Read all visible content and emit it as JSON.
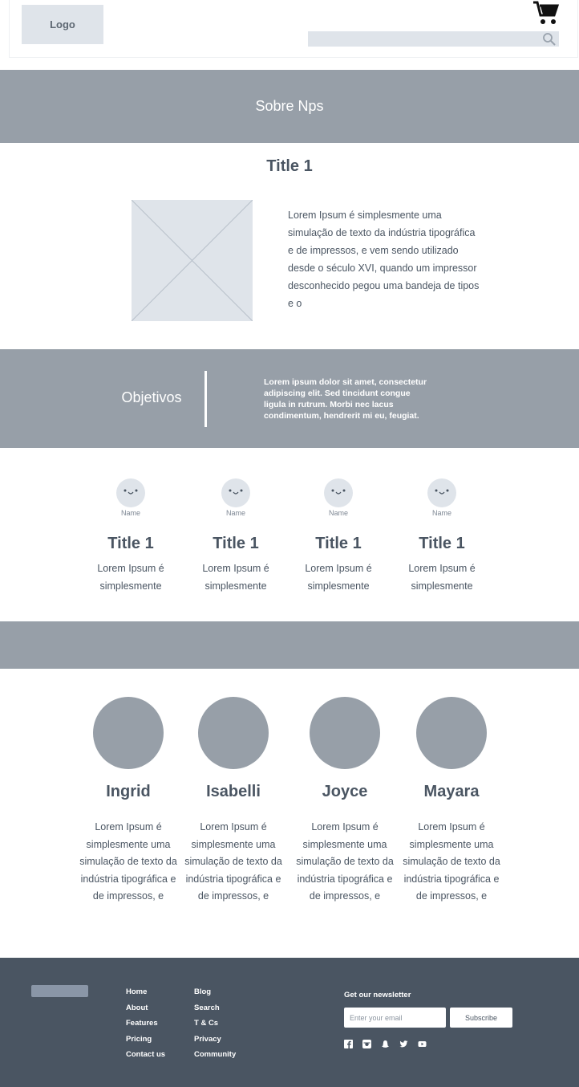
{
  "header": {
    "logo": "Logo",
    "search_placeholder": ""
  },
  "hero": {
    "title": "Sobre Nps"
  },
  "about": {
    "title": "Title 1",
    "text": "Lorem Ipsum é simplesmente uma simulação de texto da indústria tipográfica e de impressos, e vem sendo utilizado desde o século XVI, quando um impressor desconhecido pegou uma bandeja de tipos e o"
  },
  "objectives": {
    "title": "Objetivos",
    "text": "Lorem ipsum dolor sit amet, consectetur adipiscing elit. Sed tincidunt congue ligula in rutrum. Morbi nec lacus condimentum, hendrerit mi eu, feugiat."
  },
  "features": [
    {
      "name": "Name",
      "title": "Title 1",
      "text": "Lorem Ipsum é simplesmente"
    },
    {
      "name": "Name",
      "title": "Title 1",
      "text": "Lorem Ipsum é simplesmente"
    },
    {
      "name": "Name",
      "title": "Title 1",
      "text": "Lorem Ipsum é simplesmente"
    },
    {
      "name": "Name",
      "title": "Title 1",
      "text": "Lorem Ipsum é simplesmente"
    }
  ],
  "team": [
    {
      "name": "Ingrid",
      "text": "Lorem Ipsum é simplesmente uma simulação de texto da indústria tipográfica e de impressos, e"
    },
    {
      "name": "Isabelli",
      "text": "Lorem Ipsum é simplesmente uma simulação de texto da indústria tipográfica e de impressos, e"
    },
    {
      "name": "Joyce",
      "text": "Lorem Ipsum é simplesmente uma simulação de texto da indústria tipográfica e de impressos, e"
    },
    {
      "name": "Mayara",
      "text": "Lorem Ipsum é simplesmente uma simulação de texto da indústria tipográfica e de impressos, e"
    }
  ],
  "footer": {
    "col1": [
      "Home",
      "About",
      "Features",
      "Pricing",
      "Contact us"
    ],
    "col2": [
      "Blog",
      "Search",
      "T & Cs",
      "Privacy",
      "Community"
    ],
    "newsletter_label": "Get our newsletter",
    "email_placeholder": "Enter your email",
    "subscribe_label": "Subscribe",
    "socials": [
      "facebook-icon",
      "instagram-icon",
      "snapchat-icon",
      "twitter-icon",
      "youtube-icon"
    ]
  },
  "colors": {
    "band": "#979fa8",
    "placeholder": "#dfe4ea",
    "footer": "#4a5562"
  }
}
